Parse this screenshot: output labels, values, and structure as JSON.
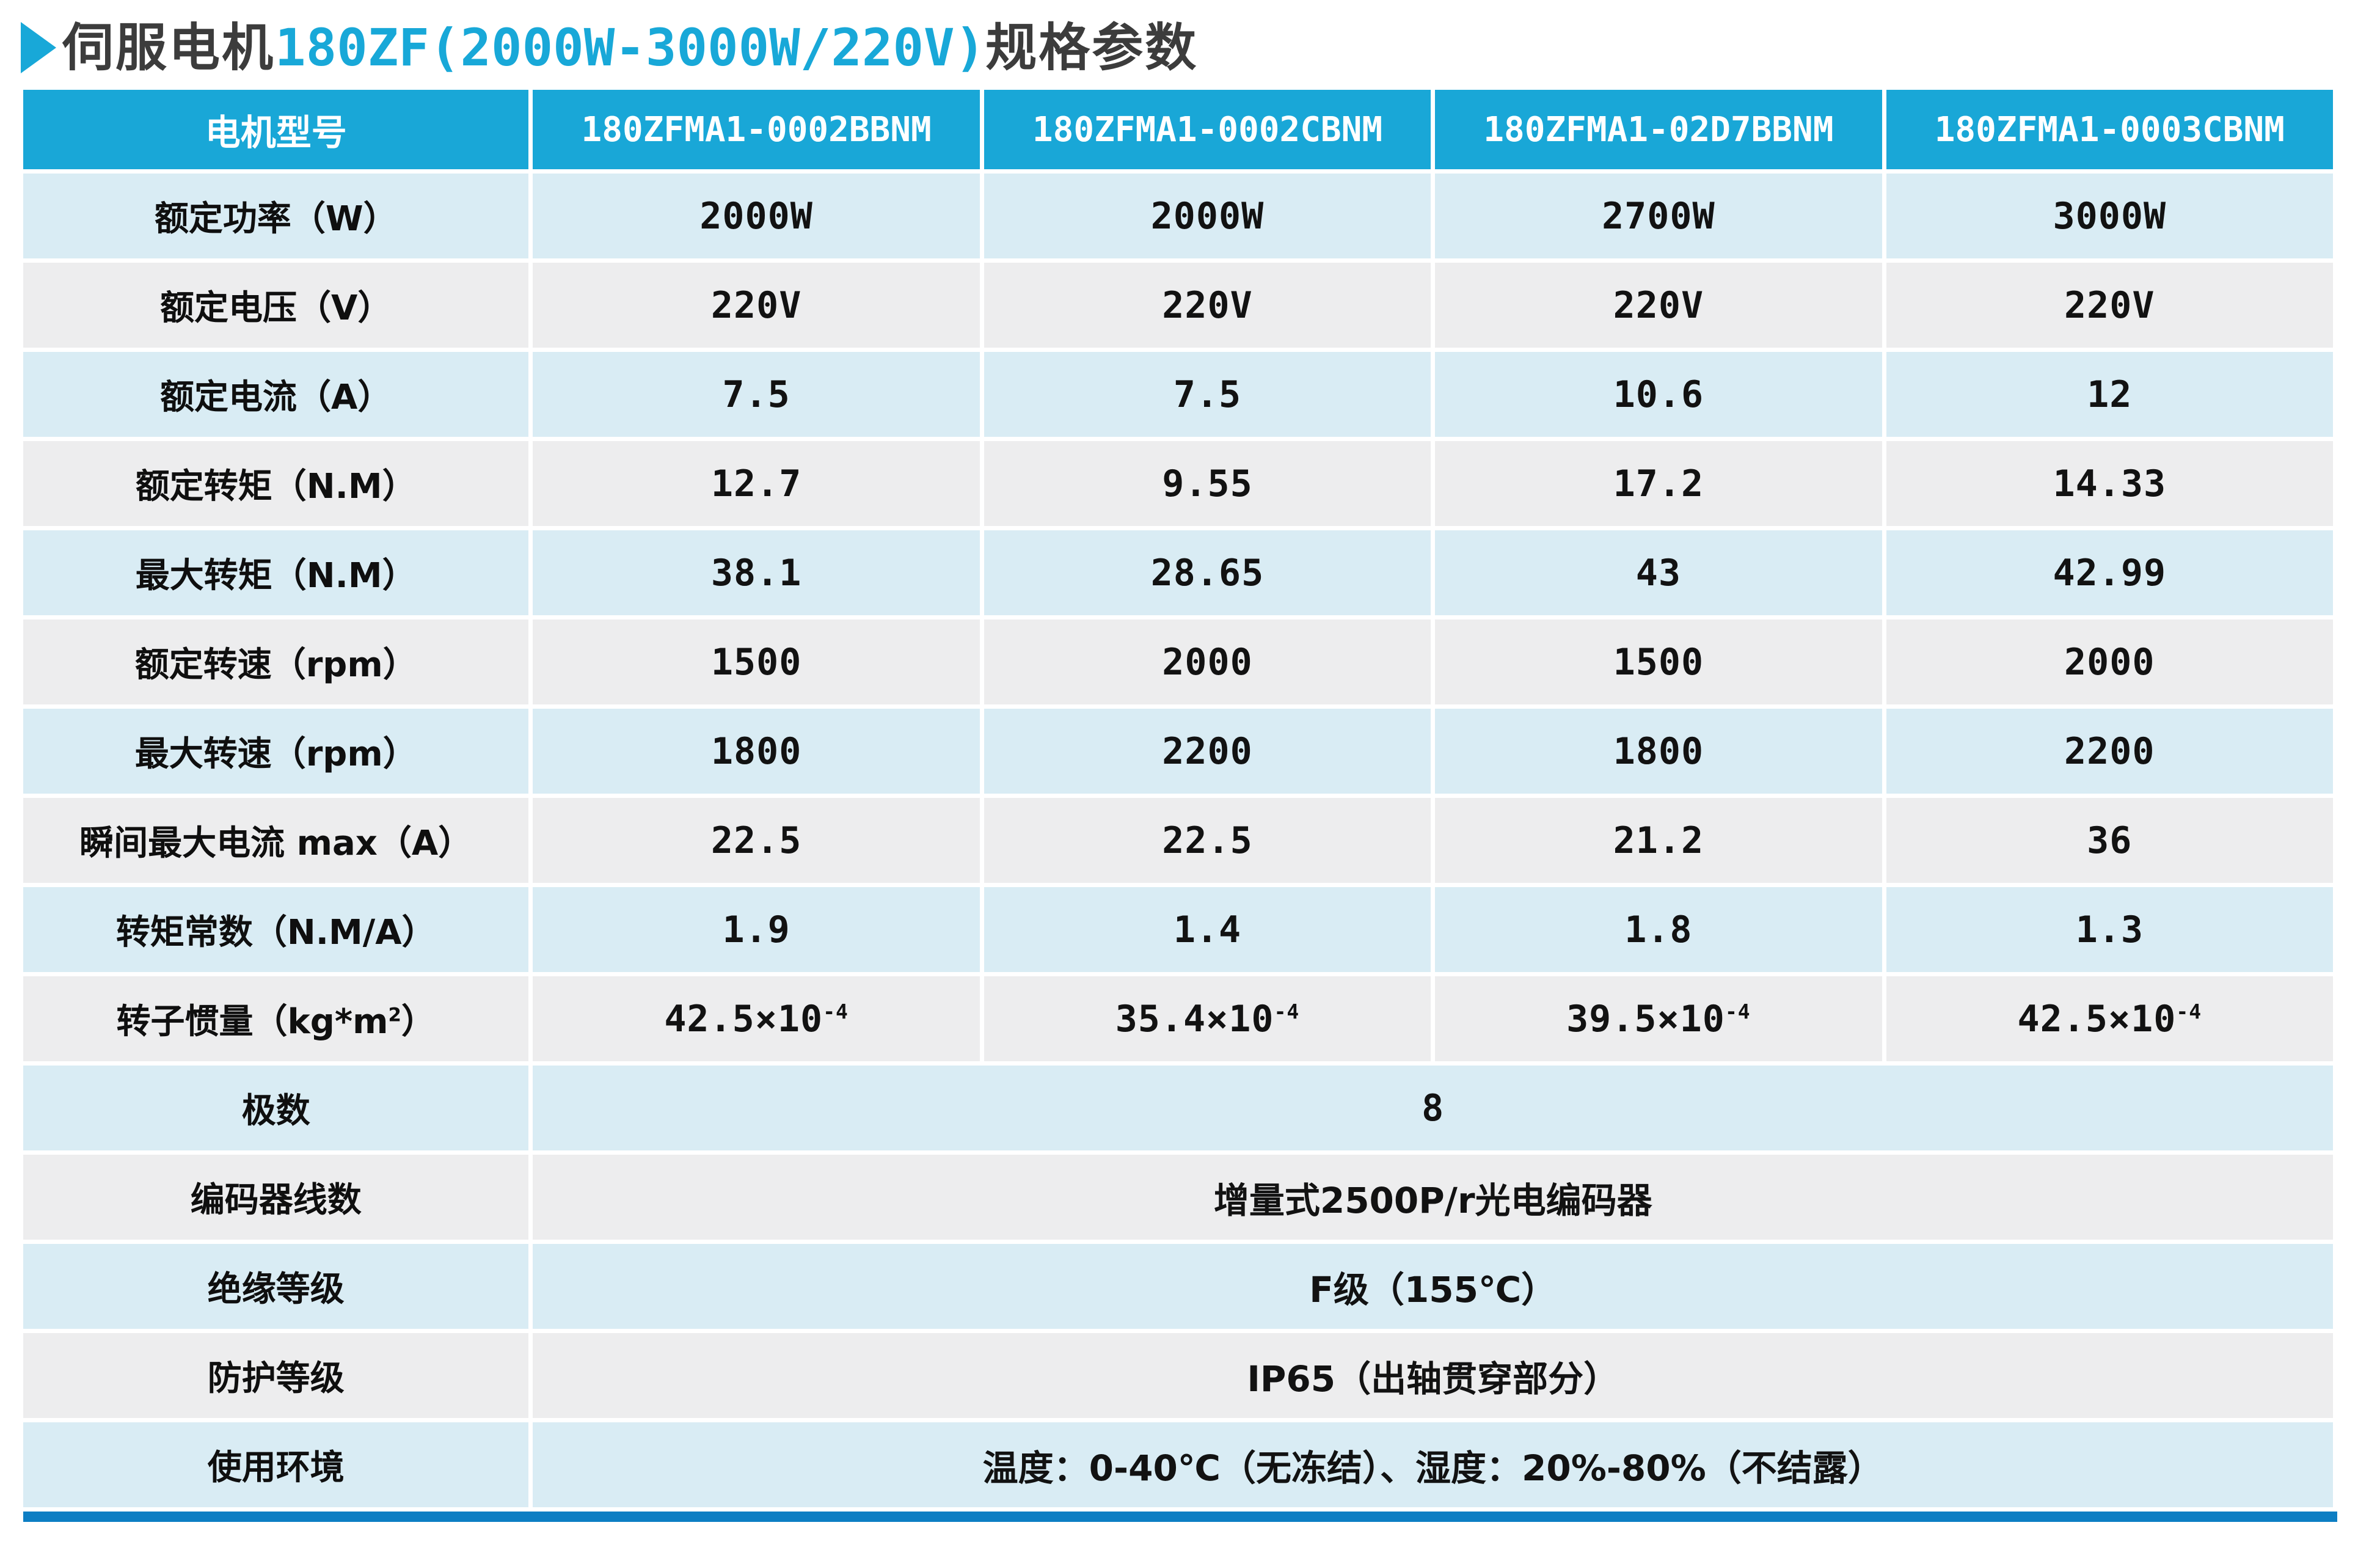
{
  "title": {
    "prefix": "伺服电机",
    "highlight": "180ZF(2000W-3000W/220V)",
    "suffix": "规格参数"
  },
  "colors": {
    "accent_cyan": "#19a7d7",
    "title_text": "#3c3c3c",
    "row_light_blue": "#d9ecf4",
    "row_light_gray": "#ededee",
    "header_text": "#ffffff",
    "cell_text": "#121212",
    "bottom_bar_blue": "#0d7ec3"
  },
  "table": {
    "header": {
      "label": "电机型号",
      "models": [
        "180ZFMA1-0002BBNM",
        "180ZFMA1-0002CBNM",
        "180ZFMA1-02D7BBNM",
        "180ZFMA1-0003CBNM"
      ]
    },
    "rows": [
      {
        "label": "额定功率（W）",
        "values": [
          "2000W",
          "2000W",
          "2700W",
          "3000W"
        ]
      },
      {
        "label": "额定电压（V）",
        "values": [
          "220V",
          "220V",
          "220V",
          "220V"
        ]
      },
      {
        "label": "额定电流（A）",
        "values": [
          "7.5",
          "7.5",
          "10.6",
          "12"
        ]
      },
      {
        "label": "额定转矩（N.M）",
        "values": [
          "12.7",
          "9.55",
          "17.2",
          "14.33"
        ]
      },
      {
        "label": "最大转矩（N.M）",
        "values": [
          "38.1",
          "28.65",
          "43",
          "42.99"
        ]
      },
      {
        "label": "额定转速（rpm）",
        "values": [
          "1500",
          "2000",
          "1500",
          "2000"
        ]
      },
      {
        "label": "最大转速（rpm）",
        "values": [
          "1800",
          "2200",
          "1800",
          "2200"
        ]
      },
      {
        "label": "瞬间最大电流 max（A）",
        "values": [
          "22.5",
          "22.5",
          "21.2",
          "36"
        ]
      },
      {
        "label": "转矩常数（N.M/A）",
        "values": [
          "1.9",
          "1.4",
          "1.8",
          "1.3"
        ]
      },
      {
        "label_base": "转子惯量（kg*m",
        "label_sup": "2",
        "label_end": "）",
        "values": [
          {
            "base": "42.5×10",
            "sup": "-4"
          },
          {
            "base": "35.4×10",
            "sup": "-4"
          },
          {
            "base": "39.5×10",
            "sup": "-4"
          },
          {
            "base": "42.5×10",
            "sup": "-4"
          }
        ]
      },
      {
        "label": "极数",
        "value": "8"
      },
      {
        "label": "编码器线数",
        "value": "增量式2500P/r光电编码器"
      },
      {
        "label": "绝缘等级",
        "value": "F级（155℃）"
      },
      {
        "label": "防护等级",
        "value": "IP65（出轴贯穿部分）"
      },
      {
        "label": "使用环境",
        "value": "温度：0-40℃（无冻结）、湿度：20%-80%（不结露）"
      }
    ]
  }
}
